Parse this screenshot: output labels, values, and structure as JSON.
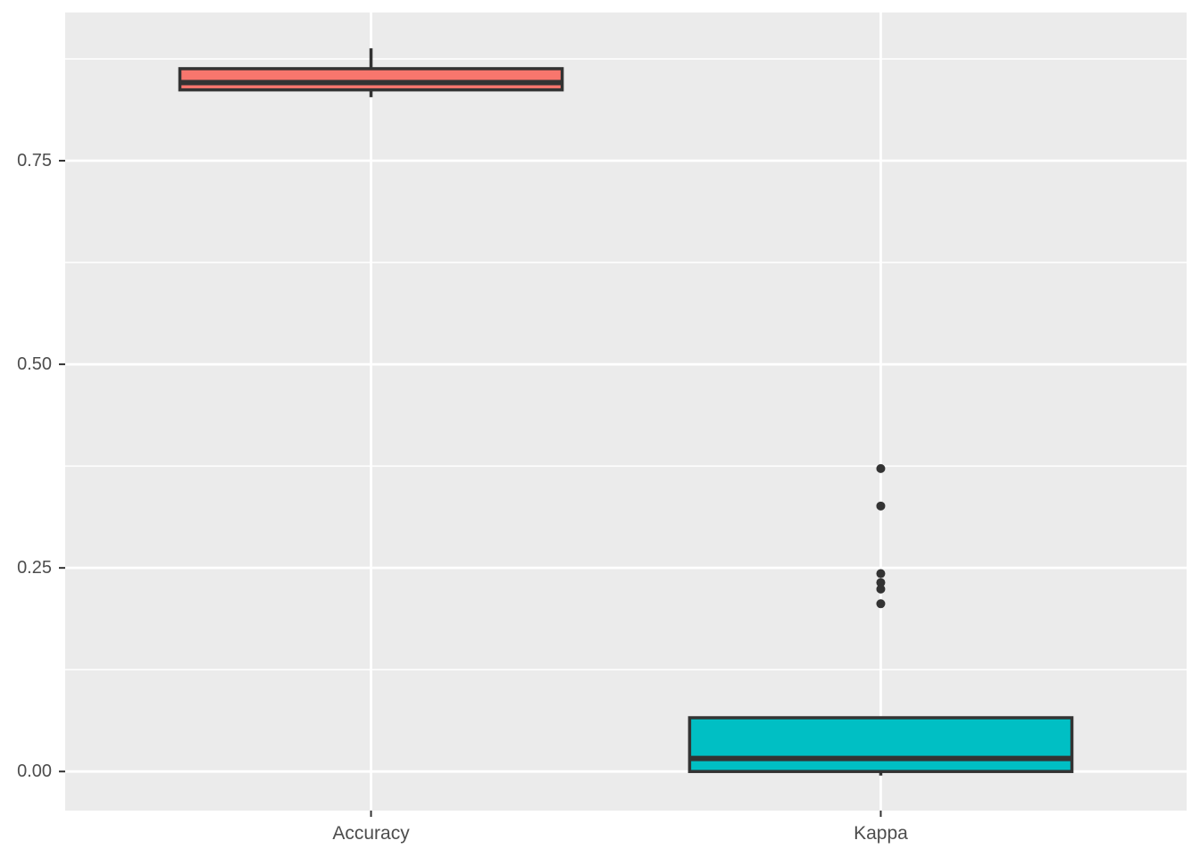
{
  "figure": {
    "background": "#FFFFFF"
  },
  "chart_data": {
    "type": "boxplot",
    "title": "",
    "xlabel": "",
    "ylabel": "",
    "categories": [
      "Accuracy",
      "Kappa"
    ],
    "series": [
      {
        "name": "Accuracy",
        "min": 0.828,
        "q1": 0.837,
        "median": 0.846,
        "q3": 0.863,
        "max": 0.888,
        "outliers": [],
        "fill": "#F8766D"
      },
      {
        "name": "Kappa",
        "min": -0.005,
        "q1": 0.0,
        "median": 0.016,
        "q3": 0.066,
        "max": 0.066,
        "outliers": [
          0.372,
          0.326,
          0.243,
          0.232,
          0.224,
          0.206
        ],
        "fill": "#00BFC4"
      }
    ],
    "y_ticks": [
      {
        "value": 0.0,
        "label": "0.00"
      },
      {
        "value": 0.25,
        "label": "0.25"
      },
      {
        "value": 0.5,
        "label": "0.50"
      },
      {
        "value": 0.75,
        "label": "0.75"
      }
    ],
    "y_minor_ticks": [
      0.125,
      0.375,
      0.625,
      0.875
    ],
    "ylim": [
      -0.048,
      0.932
    ],
    "grid": "on",
    "legend": "none",
    "theme": {
      "panel_bg": "#EBEBEB",
      "grid_color": "#FFFFFF",
      "outline_color": "#333333",
      "outlier_color": "#333333",
      "axis_text_color": "#4D4D4D",
      "tick_color": "#333333"
    }
  }
}
